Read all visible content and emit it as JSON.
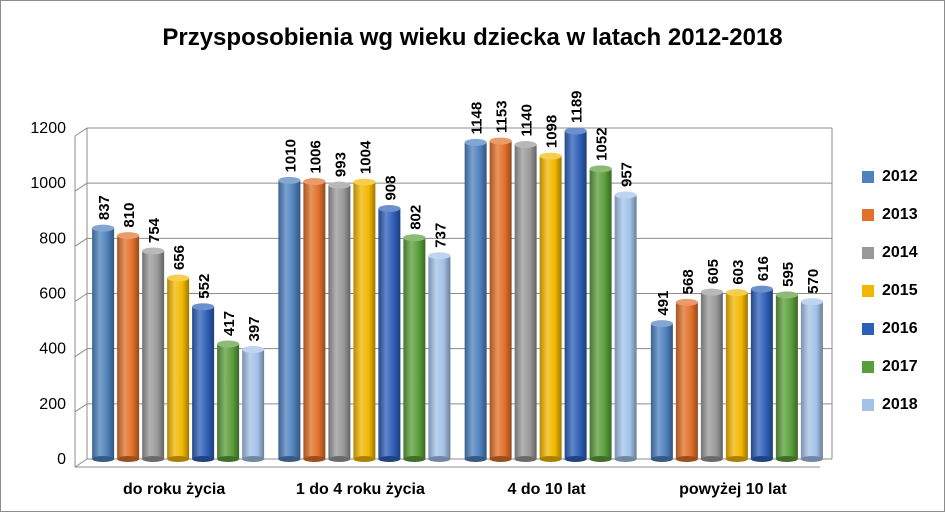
{
  "chart_data": {
    "type": "bar",
    "title": "Przysposobienia wg wieku dziecka w latach 2012-2018",
    "xlabel": "",
    "ylabel": "",
    "ylim": [
      0,
      1200
    ],
    "yticks": [
      0,
      200,
      400,
      600,
      800,
      1000,
      1200
    ],
    "grid": true,
    "legend_position": "right",
    "categories": [
      "do roku życia",
      "1 do 4 roku życia",
      "4 do 10 lat",
      "powyżej 10 lat"
    ],
    "series": [
      {
        "name": "2012",
        "color": "#4f81bd",
        "values": [
          837,
          1010,
          1148,
          491
        ]
      },
      {
        "name": "2013",
        "color": "#e0702a",
        "values": [
          810,
          1006,
          1153,
          568
        ]
      },
      {
        "name": "2014",
        "color": "#999999",
        "values": [
          754,
          993,
          1140,
          605
        ]
      },
      {
        "name": "2015",
        "color": "#f2b700",
        "values": [
          656,
          1004,
          1098,
          603
        ]
      },
      {
        "name": "2016",
        "color": "#2e5fb8",
        "values": [
          552,
          908,
          1189,
          616
        ]
      },
      {
        "name": "2017",
        "color": "#5a9e3a",
        "values": [
          417,
          802,
          1052,
          595
        ]
      },
      {
        "name": "2018",
        "color": "#a3c2e8",
        "values": [
          397,
          737,
          957,
          570
        ]
      }
    ]
  }
}
